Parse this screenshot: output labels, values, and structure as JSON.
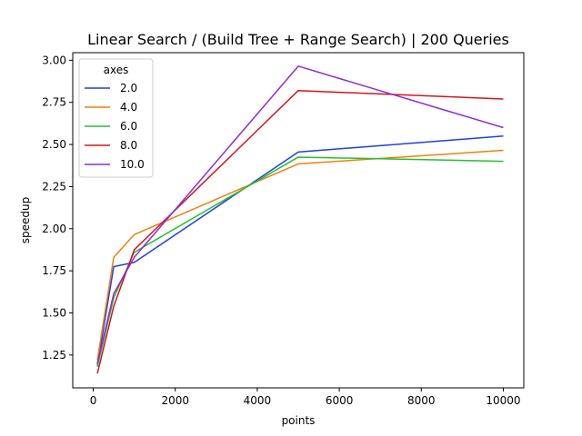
{
  "chart_data": {
    "type": "line",
    "title": "Linear Search / (Build Tree + Range Search) | 200 Queries",
    "xlabel": "points",
    "ylabel": "speedup",
    "xlim": [
      -500,
      10500
    ],
    "ylim": [
      1.055,
      3.045
    ],
    "x": [
      100,
      500,
      1000,
      5000,
      10000
    ],
    "x_ticks": [
      0,
      2000,
      4000,
      6000,
      8000,
      10000
    ],
    "x_tick_labels": [
      "0",
      "2000",
      "4000",
      "6000",
      "8000",
      "10000"
    ],
    "y_ticks": [
      1.25,
      1.5,
      1.75,
      2.0,
      2.25,
      2.5,
      2.75,
      3.0
    ],
    "y_tick_labels": [
      "1.25",
      "1.50",
      "1.75",
      "2.00",
      "2.25",
      "2.50",
      "2.75",
      "3.00"
    ],
    "grid": false,
    "legend": {
      "title": "axes",
      "position": "upper-left"
    },
    "series": [
      {
        "name": "2.0",
        "color": "#1f3fe0",
        "values": [
          1.19,
          1.775,
          1.8,
          2.455,
          2.55
        ]
      },
      {
        "name": "4.0",
        "color": "#f07f10",
        "values": [
          1.22,
          1.83,
          1.965,
          2.385,
          2.465
        ]
      },
      {
        "name": "6.0",
        "color": "#22c22e",
        "values": [
          1.18,
          1.59,
          1.86,
          2.425,
          2.4
        ]
      },
      {
        "name": "8.0",
        "color": "#d8141a",
        "values": [
          1.14,
          1.54,
          1.875,
          2.82,
          2.77
        ]
      },
      {
        "name": "10.0",
        "color": "#8c2be0",
        "values": [
          1.2,
          1.615,
          1.83,
          2.965,
          2.6
        ]
      }
    ]
  }
}
